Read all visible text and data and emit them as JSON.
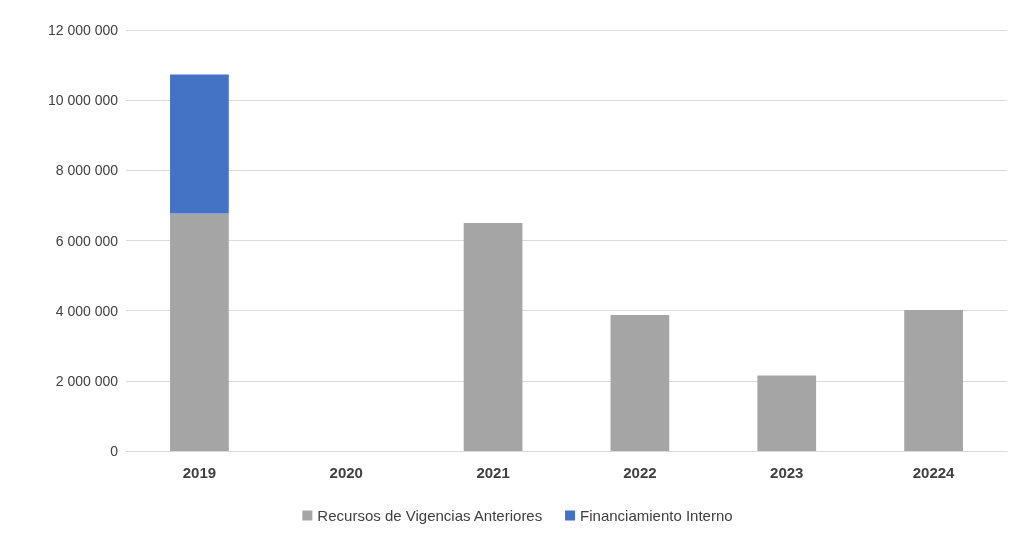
{
  "chart_data": {
    "type": "bar",
    "stacked": true,
    "categories": [
      "2019",
      "2020",
      "2021",
      "2022",
      "2023",
      "20224"
    ],
    "series": [
      {
        "name": "Recursos de Vigencias Anteriores",
        "color": "#a5a5a5",
        "values": [
          6770000,
          null,
          6500000,
          3880000,
          2150000,
          4020000
        ]
      },
      {
        "name": "Financiamiento Interno",
        "color": "#4472c4",
        "values": [
          3960000,
          null,
          null,
          null,
          null,
          null
        ]
      }
    ],
    "ylim": [
      0,
      12000000
    ],
    "yticks": [
      {
        "value": 0,
        "label": "0"
      },
      {
        "value": 2000000,
        "label": "2 000 000"
      },
      {
        "value": 4000000,
        "label": "4 000 000"
      },
      {
        "value": 6000000,
        "label": "6 000 000"
      },
      {
        "value": 8000000,
        "label": "8 000 000"
      },
      {
        "value": 10000000,
        "label": "10 000 000"
      },
      {
        "value": 12000000,
        "label": "12 000 000"
      }
    ],
    "grid": "y",
    "legend": "bottom"
  }
}
